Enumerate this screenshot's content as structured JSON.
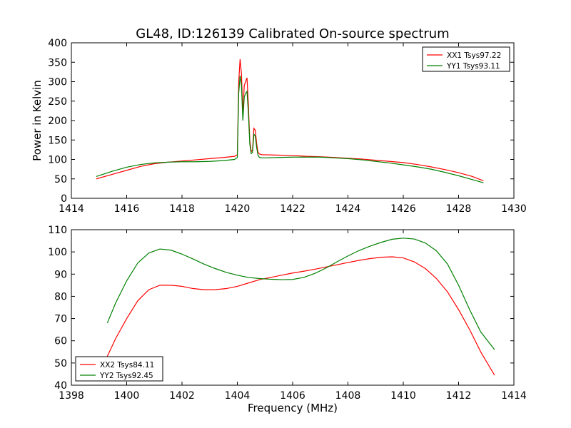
{
  "figure": {
    "title": "GL48, ID:126139 Calibrated On-source spectrum"
  },
  "chart_data": [
    {
      "type": "line",
      "title": "GL48, ID:126139 Calibrated On-source spectrum",
      "xlabel": "",
      "ylabel": "Power in Kelvin",
      "xlim": [
        1414,
        1430
      ],
      "ylim": [
        0,
        400
      ],
      "xticks": [
        1414,
        1416,
        1418,
        1420,
        1422,
        1424,
        1426,
        1428,
        1430
      ],
      "yticks": [
        0,
        50,
        100,
        150,
        200,
        250,
        300,
        350,
        400
      ],
      "grid": false,
      "legend_position": "top-right",
      "series": [
        {
          "name": "XX1 Tsys97.22",
          "color": "#ff0000",
          "x": [
            1414.9,
            1415.5,
            1416.0,
            1416.5,
            1417.0,
            1417.5,
            1418.0,
            1418.5,
            1419.0,
            1419.5,
            1419.9,
            1420.0,
            1420.05,
            1420.1,
            1420.15,
            1420.2,
            1420.25,
            1420.3,
            1420.35,
            1420.4,
            1420.45,
            1420.5,
            1420.55,
            1420.6,
            1420.65,
            1420.7,
            1420.75,
            1420.8,
            1420.9,
            1421.0,
            1421.5,
            1422.0,
            1422.5,
            1423.0,
            1423.5,
            1424.0,
            1424.5,
            1425.0,
            1425.5,
            1426.0,
            1426.5,
            1427.0,
            1427.5,
            1428.0,
            1428.5,
            1428.9
          ],
          "y": [
            50,
            62,
            72,
            82,
            89,
            93,
            96,
            99,
            102,
            105,
            108,
            112,
            300,
            358,
            320,
            215,
            290,
            300,
            310,
            240,
            150,
            120,
            125,
            180,
            175,
            140,
            118,
            114,
            112,
            112,
            111,
            110,
            108,
            107,
            105,
            103,
            101,
            98,
            95,
            92,
            87,
            81,
            74,
            66,
            56,
            45
          ]
        },
        {
          "name": "YY1 Tsys93.11",
          "color": "#008000",
          "x": [
            1414.9,
            1415.5,
            1416.0,
            1416.5,
            1417.0,
            1417.5,
            1418.0,
            1418.5,
            1419.0,
            1419.5,
            1419.9,
            1420.0,
            1420.05,
            1420.1,
            1420.15,
            1420.2,
            1420.25,
            1420.3,
            1420.35,
            1420.4,
            1420.45,
            1420.5,
            1420.55,
            1420.6,
            1420.65,
            1420.7,
            1420.75,
            1420.8,
            1420.9,
            1421.0,
            1421.5,
            1422.0,
            1422.5,
            1423.0,
            1423.5,
            1424.0,
            1424.5,
            1425.0,
            1425.5,
            1426.0,
            1426.5,
            1427.0,
            1427.5,
            1428.0,
            1428.5,
            1428.9
          ],
          "y": [
            56,
            70,
            80,
            87,
            91,
            93,
            94,
            94,
            95,
            97,
            100,
            105,
            270,
            315,
            290,
            200,
            260,
            270,
            275,
            220,
            140,
            115,
            118,
            165,
            160,
            130,
            110,
            105,
            104,
            104,
            105,
            106,
            106,
            106,
            104,
            102,
            99,
            95,
            91,
            86,
            81,
            75,
            67,
            58,
            48,
            40
          ]
        }
      ]
    },
    {
      "type": "line",
      "title": "",
      "xlabel": "Frequency (MHz)",
      "ylabel": "",
      "xlim": [
        1398,
        1414
      ],
      "ylim": [
        40,
        110
      ],
      "xticks": [
        1398,
        1400,
        1402,
        1404,
        1406,
        1408,
        1410,
        1412,
        1414
      ],
      "yticks": [
        40,
        50,
        60,
        70,
        80,
        90,
        100,
        110
      ],
      "grid": false,
      "legend_position": "bottom-left",
      "series": [
        {
          "name": "XX2 Tsys84.11",
          "color": "#ff0000",
          "x": [
            1399.3,
            1399.6,
            1400.0,
            1400.4,
            1400.8,
            1401.2,
            1401.6,
            1402.0,
            1402.4,
            1402.8,
            1403.2,
            1403.6,
            1404.0,
            1404.4,
            1404.8,
            1405.2,
            1405.6,
            1406.0,
            1406.4,
            1406.8,
            1407.2,
            1407.6,
            1408.0,
            1408.4,
            1408.8,
            1409.2,
            1409.6,
            1410.0,
            1410.4,
            1410.8,
            1411.2,
            1411.6,
            1412.0,
            1412.4,
            1412.8,
            1413.3
          ],
          "y": [
            53,
            61,
            70,
            78,
            83,
            85,
            85,
            84.5,
            83.5,
            83,
            83,
            83.5,
            84.5,
            86,
            87.5,
            88.5,
            89.5,
            90.5,
            91.3,
            92.2,
            93.2,
            94.2,
            95.2,
            96.2,
            97,
            97.6,
            97.8,
            97.3,
            95.5,
            92.5,
            88,
            82,
            74,
            65,
            55,
            44.5
          ]
        },
        {
          "name": "YY2 Tsys92.45",
          "color": "#008000",
          "x": [
            1399.3,
            1399.6,
            1400.0,
            1400.4,
            1400.8,
            1401.2,
            1401.6,
            1402.0,
            1402.4,
            1402.8,
            1403.2,
            1403.6,
            1404.0,
            1404.4,
            1404.8,
            1405.2,
            1405.6,
            1406.0,
            1406.4,
            1406.8,
            1407.2,
            1407.6,
            1408.0,
            1408.4,
            1408.8,
            1409.2,
            1409.6,
            1410.0,
            1410.4,
            1410.8,
            1411.2,
            1411.6,
            1412.0,
            1412.4,
            1412.8,
            1413.3
          ],
          "y": [
            68,
            77,
            87,
            95,
            99.5,
            101.3,
            100.8,
            99,
            96.8,
            94.5,
            92.5,
            90.8,
            89.5,
            88.5,
            88,
            87.7,
            87.5,
            87.6,
            88.5,
            90.3,
            92.7,
            95.5,
            98.2,
            100.6,
            102.6,
            104.3,
            105.7,
            106.2,
            105.8,
            104,
            100.5,
            94.5,
            85,
            74,
            64,
            56
          ]
        }
      ]
    }
  ]
}
